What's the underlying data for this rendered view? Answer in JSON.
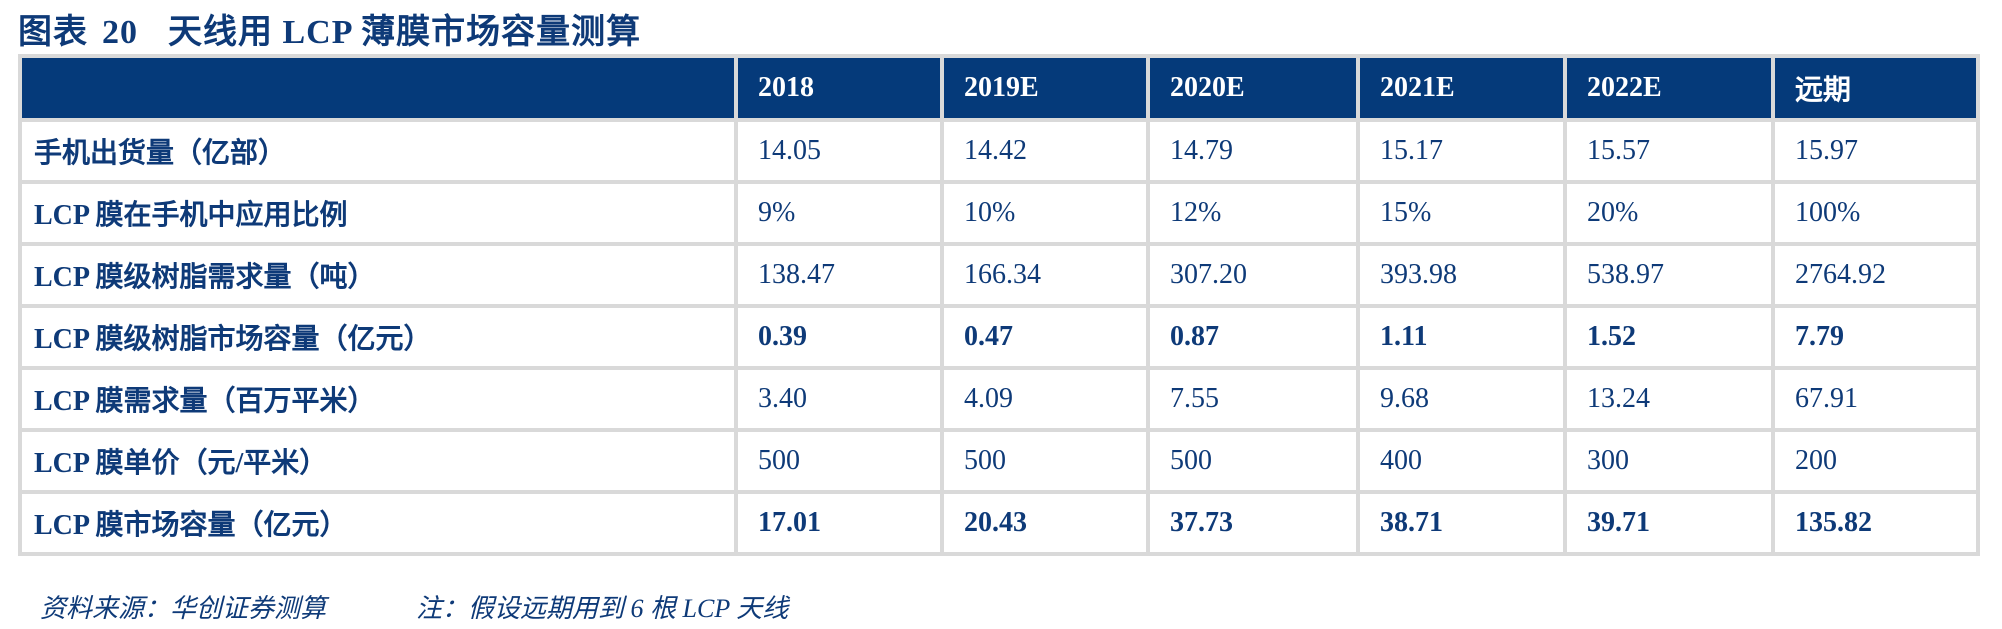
{
  "title": {
    "prefix": "图表",
    "number": "20",
    "text": "天线用 LCP 薄膜市场容量测算"
  },
  "table": {
    "headers": [
      "",
      "2018",
      "2019E",
      "2020E",
      "2021E",
      "2022E",
      "远期"
    ],
    "rows": [
      {
        "label": "手机出货量（亿部）",
        "bold": false,
        "values": [
          "14.05",
          "14.42",
          "14.79",
          "15.17",
          "15.57",
          "15.97"
        ]
      },
      {
        "label": "LCP 膜在手机中应用比例",
        "bold": false,
        "values": [
          "9%",
          "10%",
          "12%",
          "15%",
          "20%",
          "100%"
        ]
      },
      {
        "label": "LCP 膜级树脂需求量（吨）",
        "bold": false,
        "values": [
          "138.47",
          "166.34",
          "307.20",
          "393.98",
          "538.97",
          "2764.92"
        ]
      },
      {
        "label": "LCP 膜级树脂市场容量（亿元）",
        "bold": true,
        "values": [
          "0.39",
          "0.47",
          "0.87",
          "1.11",
          "1.52",
          "7.79"
        ]
      },
      {
        "label": "LCP 膜需求量（百万平米）",
        "bold": false,
        "values": [
          "3.40",
          "4.09",
          "7.55",
          "9.68",
          "13.24",
          "67.91"
        ]
      },
      {
        "label": "LCP 膜单价（元/平米）",
        "bold": false,
        "values": [
          "500",
          "500",
          "500",
          "400",
          "300",
          "200"
        ]
      },
      {
        "label": "LCP 膜市场容量（亿元）",
        "bold": true,
        "values": [
          "17.01",
          "20.43",
          "37.73",
          "38.71",
          "39.71",
          "135.82"
        ]
      }
    ]
  },
  "footer": {
    "source": "资料来源：华创证券测算",
    "note": "注：假设远期用到 6 根 LCP 天线"
  },
  "colors": {
    "header_bg": "#053a7a",
    "text": "#0e3a78",
    "border": "#d9d9d9"
  }
}
